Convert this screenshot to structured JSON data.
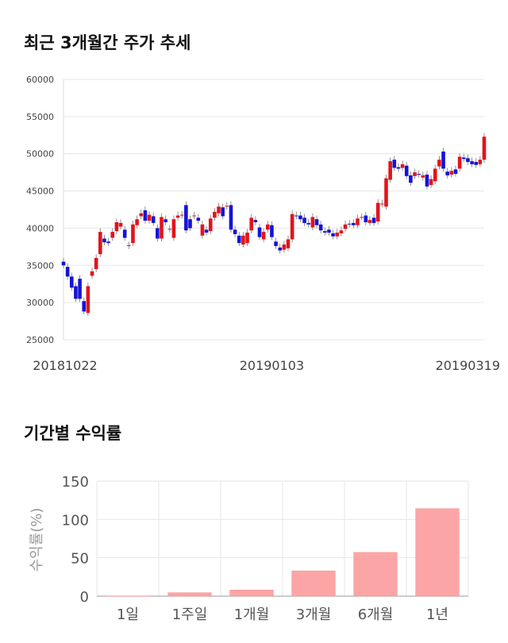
{
  "section1": {
    "title": "최근 3개월간 주가 추세"
  },
  "section2": {
    "title": "기간별 수익률"
  },
  "colors": {
    "up": "#e2141c",
    "down": "#1414d6",
    "bar": "#fca5a6",
    "grid": "#e6e6e6"
  },
  "chart_data": [
    {
      "type": "candlestick",
      "title": "최근 3개월간 주가 추세",
      "ylim": [
        25000,
        60000
      ],
      "yticks": [
        "60000",
        "55000",
        "50000",
        "45000",
        "40000",
        "35000",
        "30000",
        "25000"
      ],
      "xtick_labels": [
        {
          "label": "20181022",
          "index": 0
        },
        {
          "label": "20190103",
          "index": 51
        },
        {
          "label": "20190319",
          "index": 103
        }
      ],
      "grid": true,
      "candles": [
        [
          35500,
          35000
        ],
        [
          34800,
          33500
        ],
        [
          33500,
          32000
        ],
        [
          32200,
          30500
        ],
        [
          33200,
          30500
        ],
        [
          30200,
          28800
        ],
        [
          28600,
          32200
        ],
        [
          33600,
          34200
        ],
        [
          34500,
          36000
        ],
        [
          36500,
          39500
        ],
        [
          38600,
          38100
        ],
        [
          38200,
          38000
        ],
        [
          38700,
          39500
        ],
        [
          39600,
          40800
        ],
        [
          40200,
          40700
        ],
        [
          39800,
          38700
        ],
        [
          37600,
          37700
        ],
        [
          38000,
          40500
        ],
        [
          40400,
          41200
        ],
        [
          41600,
          42000
        ],
        [
          42400,
          41000
        ],
        [
          41000,
          41800
        ],
        [
          41600,
          40700
        ],
        [
          40000,
          38600
        ],
        [
          38600,
          41500
        ],
        [
          41200,
          40800
        ],
        [
          39800,
          39900
        ],
        [
          38700,
          41200
        ],
        [
          41400,
          41700
        ],
        [
          41700,
          41800
        ],
        [
          43100,
          39700
        ],
        [
          41200,
          40000
        ],
        [
          41600,
          41700
        ],
        [
          41400,
          41000
        ],
        [
          39000,
          40500
        ],
        [
          39800,
          39400
        ],
        [
          39600,
          41300
        ],
        [
          41400,
          42200
        ],
        [
          42000,
          42900
        ],
        [
          42800,
          41600
        ],
        [
          42900,
          43000
        ],
        [
          43100,
          39800
        ],
        [
          39800,
          39200
        ],
        [
          39000,
          38000
        ],
        [
          37800,
          39000
        ],
        [
          38000,
          39400
        ],
        [
          39700,
          41400
        ],
        [
          41100,
          40800
        ],
        [
          40100,
          38800
        ],
        [
          38500,
          39500
        ],
        [
          39800,
          40500
        ],
        [
          40400,
          38800
        ],
        [
          38200,
          37600
        ],
        [
          37400,
          37000
        ],
        [
          37100,
          37800
        ],
        [
          37300,
          38500
        ],
        [
          38500,
          41900
        ],
        [
          41700,
          41600
        ],
        [
          41700,
          41200
        ],
        [
          41400,
          40700
        ],
        [
          40700,
          40500
        ],
        [
          40100,
          41500
        ],
        [
          41200,
          40400
        ],
        [
          40500,
          39700
        ],
        [
          39600,
          39400
        ],
        [
          39800,
          39400
        ],
        [
          39300,
          38900
        ],
        [
          38900,
          39400
        ],
        [
          39300,
          39700
        ],
        [
          39900,
          40500
        ],
        [
          40600,
          40500
        ],
        [
          40700,
          40400
        ],
        [
          40400,
          41300
        ],
        [
          41500,
          41500
        ],
        [
          41700,
          40800
        ],
        [
          40700,
          41100
        ],
        [
          41400,
          40700
        ],
        [
          40900,
          43400
        ],
        [
          43200,
          43300
        ],
        [
          42900,
          46700
        ],
        [
          46500,
          49000
        ],
        [
          49200,
          48100
        ],
        [
          48200,
          48000
        ],
        [
          48100,
          48600
        ],
        [
          48400,
          47000
        ],
        [
          47100,
          46100
        ],
        [
          47000,
          47500
        ],
        [
          47300,
          47200
        ],
        [
          46800,
          47100
        ],
        [
          47200,
          45600
        ],
        [
          45800,
          46600
        ],
        [
          46300,
          48000
        ],
        [
          48300,
          49200
        ],
        [
          50300,
          48000
        ],
        [
          47600,
          47100
        ],
        [
          47200,
          47700
        ],
        [
          47900,
          47300
        ],
        [
          48000,
          49600
        ],
        [
          49500,
          49300
        ],
        [
          49400,
          48900
        ],
        [
          49000,
          48600
        ],
        [
          48900,
          48500
        ],
        [
          48600,
          49200
        ],
        [
          49200,
          52300
        ]
      ]
    },
    {
      "type": "bar",
      "title": "기간별 수익률",
      "ylabel": "수익률(%)",
      "ylim": [
        0,
        150
      ],
      "yticks": [
        "150",
        "100",
        "50",
        "0"
      ],
      "categories": [
        "1일",
        "1주일",
        "1개월",
        "3개월",
        "6개월",
        "1년"
      ],
      "values": [
        0.3,
        4.5,
        8,
        33,
        57,
        114
      ],
      "grid": true
    }
  ]
}
